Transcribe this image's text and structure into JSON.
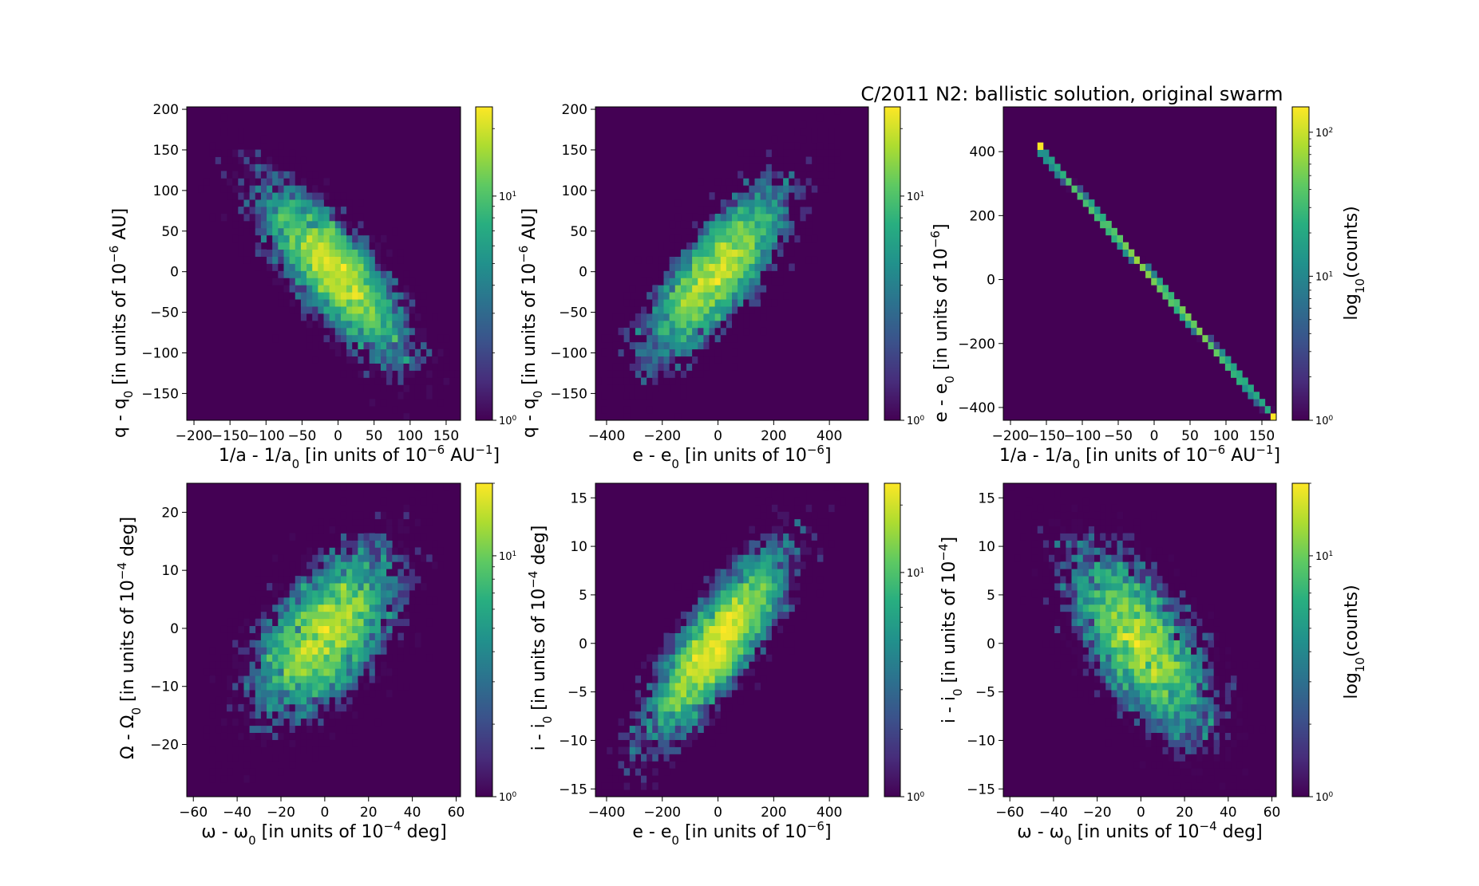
{
  "figure_title": "C/2011 N2: ballistic solution, original swarm",
  "chart_data": [
    {
      "type": "heatmap",
      "id": "p1",
      "xlabel": {
        "pre": "1/a - 1/a",
        "sub": "0",
        "mid": " [in units of 10",
        "sup": "−6",
        "post": " AU",
        "sup2": "−1",
        "end": "]"
      },
      "ylabel": {
        "pre": "q - q",
        "sub": "0",
        "mid": " [in units of 10",
        "sup": "−6",
        "post": " AU]"
      },
      "xlim": [
        -210,
        170
      ],
      "ylim": [
        -183,
        203
      ],
      "xticks": [
        -200,
        -150,
        -100,
        -50,
        0,
        50,
        100,
        150
      ],
      "yticks": [
        -150,
        -100,
        -50,
        0,
        50,
        100,
        150,
        200
      ],
      "xtick_labels": [
        "−200",
        "−150",
        "−100",
        "−50",
        "0",
        "50",
        "100",
        "150"
      ],
      "ytick_labels": [
        "−150",
        "−100",
        "−50",
        "0",
        "50",
        "100",
        "150",
        "200"
      ],
      "center": [
        -5,
        0
      ],
      "std": [
        52,
        55
      ],
      "rho": -0.78,
      "n": 6000,
      "peak": 25,
      "colorbar": {
        "scale": "log",
        "max": 25,
        "ticks": [
          {
            "base": "10",
            "exp": "0",
            "v": 1
          },
          {
            "base": "10",
            "exp": "1",
            "v": 10
          }
        ],
        "label": null
      }
    },
    {
      "type": "heatmap",
      "id": "p2",
      "xlabel": {
        "pre": "e - e",
        "sub": "0",
        "mid": " [in units of 10",
        "sup": "−6",
        "end": "]"
      },
      "ylabel": {
        "pre": "q - q",
        "sub": "0",
        "mid": " [in units of 10",
        "sup": "−6",
        "post": " AU]"
      },
      "xlim": [
        -440,
        540
      ],
      "ylim": [
        -183,
        203
      ],
      "xticks": [
        -400,
        -200,
        0,
        200,
        400
      ],
      "yticks": [
        -150,
        -100,
        -50,
        0,
        50,
        100,
        150,
        200
      ],
      "xtick_labels": [
        "−400",
        "−200",
        "0",
        "200",
        "400"
      ],
      "ytick_labels": [
        "−150",
        "−100",
        "−50",
        "0",
        "50",
        "100",
        "150",
        "200"
      ],
      "center": [
        0,
        0
      ],
      "std": [
        130,
        55
      ],
      "rho": 0.78,
      "n": 6000,
      "peak": 25,
      "colorbar": {
        "scale": "log",
        "max": 25,
        "ticks": [
          {
            "base": "10",
            "exp": "0",
            "v": 1
          },
          {
            "base": "10",
            "exp": "1",
            "v": 10
          }
        ],
        "label": null
      }
    },
    {
      "type": "heatmap",
      "id": "p3",
      "xlabel": {
        "pre": "1/a - 1/a",
        "sub": "0",
        "mid": " [in units of 10",
        "sup": "−6",
        "post": " AU",
        "sup2": "−1",
        "end": "]"
      },
      "ylabel": {
        "pre": "e - e",
        "sub": "0",
        "mid": " [in units of 10",
        "sup": "−6",
        "end": "]"
      },
      "xlim": [
        -210,
        170
      ],
      "ylim": [
        -440,
        540
      ],
      "xticks": [
        -200,
        -150,
        -100,
        -50,
        0,
        50,
        100,
        150
      ],
      "yticks": [
        -400,
        -200,
        0,
        200,
        400
      ],
      "xtick_labels": [
        "−200",
        "−150",
        "−100",
        "−50",
        "0",
        "50",
        "100",
        "150"
      ],
      "ytick_labels": [
        "−400",
        "−200",
        "0",
        "200",
        "400"
      ],
      "line": {
        "x0": -160,
        "y0": 410,
        "x1": 165,
        "y1": -425
      },
      "center": [
        0,
        0
      ],
      "std": [
        52,
        130
      ],
      "n": 6000,
      "peak": 150,
      "colorbar": {
        "scale": "log",
        "max": 150,
        "ticks": [
          {
            "base": "10",
            "exp": "0",
            "v": 1
          },
          {
            "base": "10",
            "exp": "1",
            "v": 10
          },
          {
            "base": "10",
            "exp": "2",
            "v": 100
          }
        ],
        "label": {
          "pre": "log",
          "sub": "10",
          "post": "(counts)"
        }
      }
    },
    {
      "type": "heatmap",
      "id": "p4",
      "xlabel": {
        "pre": "ω - ω",
        "sub": "0",
        "mid": " [in units of 10",
        "sup": "−4",
        "post": " deg]"
      },
      "ylabel": {
        "pre": "Ω - Ω",
        "sub": "0",
        "mid": " [in units of 10",
        "sup": "−4",
        "post": " deg]"
      },
      "xlim": [
        -63,
        62
      ],
      "ylim": [
        -29,
        25
      ],
      "xticks": [
        -60,
        -40,
        -20,
        0,
        20,
        40,
        60
      ],
      "yticks": [
        -20,
        -10,
        0,
        10,
        20
      ],
      "xtick_labels": [
        "−60",
        "−40",
        "−20",
        "0",
        "20",
        "40",
        "60"
      ],
      "ytick_labels": [
        "−20",
        "−10",
        "0",
        "10",
        "20"
      ],
      "center": [
        0,
        -1
      ],
      "std": [
        17,
        7.5
      ],
      "rho": 0.55,
      "n": 6000,
      "peak": 20,
      "colorbar": {
        "scale": "log",
        "max": 20,
        "ticks": [
          {
            "base": "10",
            "exp": "0",
            "v": 1
          },
          {
            "base": "10",
            "exp": "1",
            "v": 10
          }
        ],
        "label": null
      }
    },
    {
      "type": "heatmap",
      "id": "p5",
      "xlabel": {
        "pre": "e - e",
        "sub": "0",
        "mid": " [in units of 10",
        "sup": "−6",
        "end": "]"
      },
      "ylabel": {
        "pre": "i - i",
        "sub": "0",
        "mid": " [in units of 10",
        "sup": "−4",
        "post": " deg]"
      },
      "xlim": [
        -440,
        540
      ],
      "ylim": [
        -15.8,
        16.5
      ],
      "xticks": [
        -400,
        -200,
        0,
        200,
        400
      ],
      "yticks": [
        -15,
        -10,
        -5,
        0,
        5,
        10,
        15
      ],
      "xtick_labels": [
        "−400",
        "−200",
        "0",
        "200",
        "400"
      ],
      "ytick_labels": [
        "−15",
        "−10",
        "−5",
        "0",
        "5",
        "10",
        "15"
      ],
      "center": [
        0,
        0
      ],
      "std": [
        130,
        5
      ],
      "rho": 0.82,
      "n": 6000,
      "peak": 25,
      "colorbar": {
        "scale": "log",
        "max": 25,
        "ticks": [
          {
            "base": "10",
            "exp": "0",
            "v": 1
          },
          {
            "base": "10",
            "exp": "1",
            "v": 10
          }
        ],
        "label": null
      }
    },
    {
      "type": "heatmap",
      "id": "p6",
      "xlabel": {
        "pre": "ω - ω",
        "sub": "0",
        "mid": " [in units of 10",
        "sup": "−4",
        "post": " deg]"
      },
      "ylabel": {
        "pre": "i - i",
        "sub": "0",
        "mid": " [in units of 10",
        "sup": "−4",
        "end": "]"
      },
      "xlim": [
        -63,
        62
      ],
      "ylim": [
        -15.8,
        16.5
      ],
      "xticks": [
        -60,
        -40,
        -20,
        0,
        20,
        40,
        60
      ],
      "yticks": [
        -15,
        -10,
        -5,
        0,
        5,
        10,
        15
      ],
      "xtick_labels": [
        "−60",
        "−40",
        "−20",
        "0",
        "20",
        "40",
        "60"
      ],
      "ytick_labels": [
        "−15",
        "−10",
        "−5",
        "0",
        "5",
        "10",
        "15"
      ],
      "center": [
        0,
        0
      ],
      "std": [
        17,
        5
      ],
      "rho": -0.65,
      "n": 6000,
      "peak": 20,
      "colorbar": {
        "scale": "log",
        "max": 20,
        "ticks": [
          {
            "base": "10",
            "exp": "0",
            "v": 1
          },
          {
            "base": "10",
            "exp": "1",
            "v": 10
          }
        ],
        "label": {
          "pre": "log",
          "sub": "10",
          "post": "(counts)"
        }
      }
    }
  ]
}
